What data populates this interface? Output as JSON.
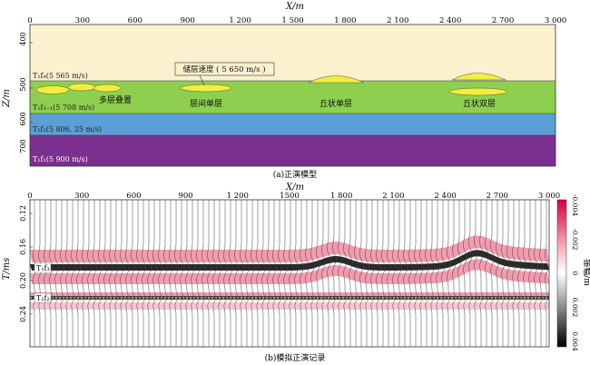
{
  "top": {
    "xlabel": "X/m",
    "ylabel": "Z/m",
    "x_ticks": [
      "0",
      "300",
      "600",
      "900",
      "1 200",
      "1 500",
      "1 800",
      "2 100",
      "2 400",
      "2 700",
      "3 000"
    ],
    "y_ticks": [
      "400",
      "500",
      "600",
      "700"
    ],
    "layers": [
      {
        "label": "T₁f₄(5 565 m/s)",
        "color": "#fbf1cf"
      },
      {
        "label": "T₁f₃₋₁(5 708 m/s)",
        "color": "#8ecf50"
      },
      {
        "label": "T₁f₂(5 806. 25 m/s)",
        "color": "#5b9fd6"
      },
      {
        "label": "T₁f₁(5 900 m/s)",
        "color": "#7b2f8e"
      }
    ],
    "lens_color": "#f2ee3d",
    "reservoir_velocity": "储层速度 ( 5 650 m/s )",
    "labels": {
      "multi": "多层叠置",
      "inter": "层间单层",
      "mound_single": "丘状单层",
      "mound_double": "丘状双层"
    },
    "caption": "(a)正演模型"
  },
  "bottom": {
    "xlabel": "X/m",
    "ylabel": "T/ms",
    "x_ticks": [
      "0",
      "300",
      "600",
      "900",
      "1 200",
      "1500",
      "1 800",
      "2 100",
      "2 400",
      "2 700",
      "3 000"
    ],
    "y_ticks": [
      "0.12",
      "0.16",
      "0.20",
      "0.24"
    ],
    "horizon_labels": [
      "T₁f₃",
      "T₁f₂"
    ],
    "colorbar_ticks": [
      "-0.004",
      "-0.002",
      "0",
      "0.002",
      "0.004"
    ],
    "colorbar_label": "振幅/m",
    "caption": "(b)模拟正演记录"
  }
}
